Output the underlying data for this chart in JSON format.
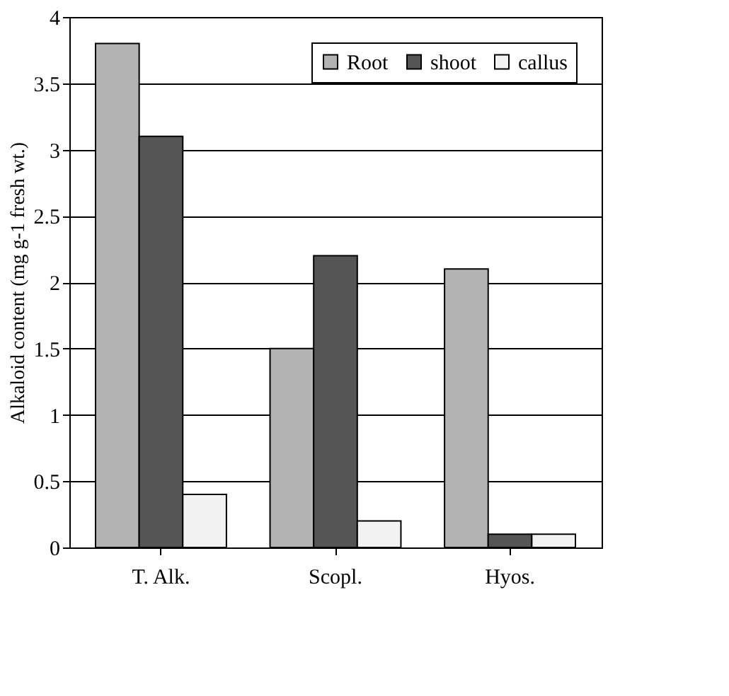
{
  "chart_data": {
    "type": "bar",
    "ylabel": "Alkaloid content (mg g-1 fresh wt.)",
    "categories": [
      "T. Alk.",
      "Scopl.",
      "Hyos."
    ],
    "series": [
      {
        "name": "Root",
        "color": "#b3b3b3",
        "values": [
          3.8,
          1.5,
          2.1
        ]
      },
      {
        "name": "shoot",
        "color": "#555555",
        "values": [
          3.1,
          2.2,
          0.1
        ]
      },
      {
        "name": "callus",
        "color": "#f2f2f2",
        "values": [
          0.4,
          0.2,
          0.1
        ]
      }
    ],
    "ylim": [
      0,
      4
    ],
    "yticks": [
      0,
      0.5,
      1,
      1.5,
      2,
      2.5,
      3,
      3.5,
      4
    ],
    "grid": "y",
    "legend": "top right"
  }
}
